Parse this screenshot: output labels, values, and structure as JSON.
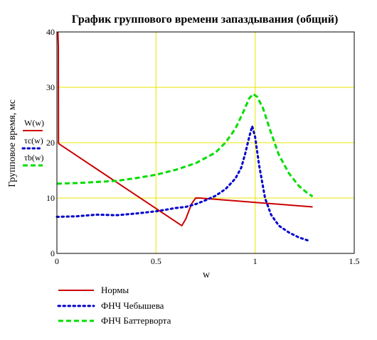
{
  "chart_data": {
    "type": "line",
    "title": "График группового времени запаздывания (общий)",
    "xlabel": "w",
    "ylabel": "Групповое время, мс",
    "xlim": [
      0,
      1.5
    ],
    "ylim": [
      0,
      40
    ],
    "x_ticks": [
      0,
      0.5,
      1,
      1.5
    ],
    "x_tick_labels": [
      "0",
      "0.5",
      "1",
      "1.5"
    ],
    "y_ticks": [
      0,
      10,
      20,
      30,
      40
    ],
    "y_tick_labels": [
      "0",
      "10",
      "20",
      "30",
      "40"
    ],
    "grid": true,
    "grid_color": "#e6e600",
    "series": [
      {
        "label": "W(w)",
        "name": "Нормы",
        "color": "#cc0000",
        "style": "solid",
        "points": [
          [
            0.005,
            40
          ],
          [
            0.007,
            37.5
          ],
          [
            0.008,
            20
          ],
          [
            0.01,
            19.8
          ],
          [
            0.63,
            5
          ],
          [
            0.65,
            6.2
          ],
          [
            0.68,
            9
          ],
          [
            0.7,
            10
          ],
          [
            0.72,
            10
          ],
          [
            1.29,
            8.4
          ]
        ]
      },
      {
        "label": "τc(w)",
        "name": "ФНЧ Чебышева",
        "color": "#0000cc",
        "style": "dotted",
        "points": [
          [
            0,
            6.6
          ],
          [
            0.1,
            6.7
          ],
          [
            0.2,
            7
          ],
          [
            0.3,
            6.9
          ],
          [
            0.4,
            7.2
          ],
          [
            0.5,
            7.6
          ],
          [
            0.55,
            7.9
          ],
          [
            0.6,
            8.2
          ],
          [
            0.65,
            8.4
          ],
          [
            0.7,
            8.9
          ],
          [
            0.75,
            9.6
          ],
          [
            0.8,
            10.4
          ],
          [
            0.85,
            11.6
          ],
          [
            0.9,
            13.5
          ],
          [
            0.93,
            15.5
          ],
          [
            0.95,
            18
          ],
          [
            0.97,
            21
          ],
          [
            0.985,
            23
          ],
          [
            1.0,
            21
          ],
          [
            1.02,
            16
          ],
          [
            1.05,
            10
          ],
          [
            1.08,
            7
          ],
          [
            1.12,
            5
          ],
          [
            1.17,
            3.8
          ],
          [
            1.22,
            2.9
          ],
          [
            1.27,
            2.3
          ]
        ]
      },
      {
        "label": "τb(w)",
        "name": "ФНЧ Баттерворта",
        "color": "#00dd00",
        "style": "dashed",
        "points": [
          [
            0,
            12.6
          ],
          [
            0.1,
            12.7
          ],
          [
            0.2,
            12.9
          ],
          [
            0.3,
            13.1
          ],
          [
            0.4,
            13.6
          ],
          [
            0.5,
            14.2
          ],
          [
            0.6,
            15.1
          ],
          [
            0.7,
            16.3
          ],
          [
            0.8,
            18.2
          ],
          [
            0.85,
            20
          ],
          [
            0.9,
            22.5
          ],
          [
            0.94,
            25.5
          ],
          [
            0.97,
            28
          ],
          [
            0.99,
            28.8
          ],
          [
            1.01,
            28.3
          ],
          [
            1.04,
            26.2
          ],
          [
            1.08,
            21.8
          ],
          [
            1.12,
            17.8
          ],
          [
            1.17,
            14.5
          ],
          [
            1.22,
            12.2
          ],
          [
            1.26,
            11
          ],
          [
            1.29,
            10.3
          ]
        ]
      }
    ],
    "legend_placement": "bottom-left"
  }
}
